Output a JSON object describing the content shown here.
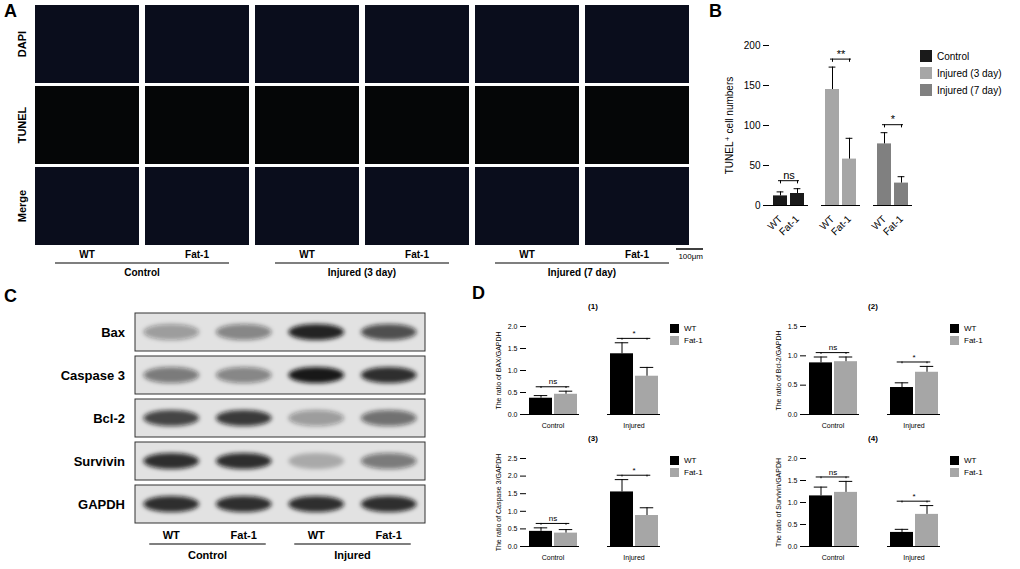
{
  "panel_a": {
    "label": "A",
    "rows": [
      "DAPI",
      "TUNEL",
      "Merge"
    ],
    "columns": [
      "WT",
      "Fat-1",
      "WT",
      "Fat-1",
      "WT",
      "Fat-1"
    ],
    "groups": [
      "Control",
      "Injured (3 day)",
      "Injured (7 day)"
    ],
    "scale_bar": "100μm"
  },
  "panel_b": {
    "label": "B"
  },
  "panel_c": {
    "label": "C",
    "proteins": [
      {
        "name": "Bax",
        "bands": [
          0.35,
          0.45,
          0.9,
          0.7
        ]
      },
      {
        "name": "Caspase 3",
        "bands": [
          0.5,
          0.45,
          0.95,
          0.85
        ]
      },
      {
        "name": "Bcl-2",
        "bands": [
          0.75,
          0.8,
          0.35,
          0.55
        ]
      },
      {
        "name": "Survivin",
        "bands": [
          0.85,
          0.85,
          0.25,
          0.5
        ]
      },
      {
        "name": "GAPDH",
        "bands": [
          0.85,
          0.85,
          0.85,
          0.85
        ]
      }
    ],
    "lanes": [
      "WT",
      "Fat-1",
      "WT",
      "Fat-1"
    ],
    "groups": [
      "Control",
      "Injured"
    ]
  },
  "panel_d": {
    "label": "D"
  },
  "chart_data": [
    {
      "type": "bar",
      "ylabel": "TUNEL⁺ cell numbers",
      "categories": [
        "WT",
        "Fat-1"
      ],
      "series": [
        {
          "name": "Control",
          "color": "#1a1a1a",
          "values": [
            12,
            15
          ],
          "errors": [
            5,
            6
          ]
        },
        {
          "name": "Injured (3 day)",
          "color": "#a6a6a6",
          "values": [
            145,
            58
          ],
          "errors": [
            28,
            26
          ]
        },
        {
          "name": "Injured (7 day)",
          "color": "#808080",
          "values": [
            77,
            28
          ],
          "errors": [
            14,
            8
          ]
        }
      ],
      "ylim": [
        0,
        200
      ],
      "yticks": [
        0,
        50,
        100,
        150,
        200
      ],
      "legend": "upper right",
      "annotations": [
        {
          "group": "Control",
          "label": "ns"
        },
        {
          "group": "Injured (3 day)",
          "label": "**"
        },
        {
          "group": "Injured (7 day)",
          "label": "*"
        }
      ]
    },
    {
      "type": "bar",
      "title": "(1)",
      "ylabel": "The ratio of BAX/GAPDH",
      "categories": [
        "Control",
        "Injured"
      ],
      "series": [
        {
          "name": "WT",
          "color": "#000000",
          "values": [
            0.37,
            1.38
          ],
          "errors": [
            0.06,
            0.25
          ]
        },
        {
          "name": "Fat-1",
          "color": "#a6a6a6",
          "values": [
            0.46,
            0.87
          ],
          "errors": [
            0.07,
            0.2
          ]
        }
      ],
      "ylim": [
        0,
        2
      ],
      "yticks": [
        {
          "value": 0,
          "label": "0.0"
        },
        {
          "value": 0.5,
          "label": "0.5"
        },
        {
          "value": 1,
          "label": "1.0"
        },
        {
          "value": 1.5,
          "label": "1.5"
        },
        {
          "value": 2,
          "label": "2.0"
        }
      ],
      "legend": "upper right",
      "annotations": [
        {
          "group": "Control",
          "label": "ns"
        },
        {
          "group": "Injured",
          "label": "*"
        }
      ]
    },
    {
      "type": "bar",
      "title": "(2)",
      "ylabel": "The ratio of Bcl-2/GAPDH",
      "categories": [
        "Control",
        "Injured"
      ],
      "series": [
        {
          "name": "WT",
          "color": "#000000",
          "values": [
            0.88,
            0.46
          ],
          "errors": [
            0.1,
            0.08
          ]
        },
        {
          "name": "Fat-1",
          "color": "#a6a6a6",
          "values": [
            0.9,
            0.72
          ],
          "errors": [
            0.08,
            0.1
          ]
        }
      ],
      "ylim": [
        0,
        1.5
      ],
      "yticks": [
        {
          "value": 0,
          "label": "0.0"
        },
        {
          "value": 0.5,
          "label": "0.5"
        },
        {
          "value": 1,
          "label": "1.0"
        },
        {
          "value": 1.5,
          "label": "1.5"
        }
      ],
      "legend": "upper right",
      "annotations": [
        {
          "group": "Control",
          "label": "ns"
        },
        {
          "group": "Injured",
          "label": "*"
        }
      ]
    },
    {
      "type": "bar",
      "title": "(3)",
      "ylabel": "The ratio of Caspase 3/GAPDH",
      "categories": [
        "Control",
        "Injured"
      ],
      "series": [
        {
          "name": "WT",
          "color": "#000000",
          "values": [
            0.43,
            1.55
          ],
          "errors": [
            0.1,
            0.35
          ]
        },
        {
          "name": "Fat-1",
          "color": "#a6a6a6",
          "values": [
            0.38,
            0.88
          ],
          "errors": [
            0.1,
            0.22
          ]
        }
      ],
      "ylim": [
        0,
        2.5
      ],
      "yticks": [
        {
          "value": 0,
          "label": "0.0"
        },
        {
          "value": 0.5,
          "label": "0.5"
        },
        {
          "value": 1,
          "label": "1.0"
        },
        {
          "value": 1.5,
          "label": "1.5"
        },
        {
          "value": 2,
          "label": "2.0"
        },
        {
          "value": 2.5,
          "label": "2.5"
        }
      ],
      "legend": "upper right",
      "annotations": [
        {
          "group": "Control",
          "label": "ns"
        },
        {
          "group": "Injured",
          "label": "*"
        }
      ]
    },
    {
      "type": "bar",
      "title": "(4)",
      "ylabel": "The ratio of Survivin/GAPDH",
      "categories": [
        "Control",
        "Injured"
      ],
      "series": [
        {
          "name": "WT",
          "color": "#000000",
          "values": [
            1.15,
            0.32
          ],
          "errors": [
            0.2,
            0.07
          ]
        },
        {
          "name": "Fat-1",
          "color": "#a6a6a6",
          "values": [
            1.23,
            0.73
          ],
          "errors": [
            0.25,
            0.2
          ]
        }
      ],
      "ylim": [
        0,
        2
      ],
      "yticks": [
        {
          "value": 0,
          "label": "0.0"
        },
        {
          "value": 0.5,
          "label": "0.5"
        },
        {
          "value": 1,
          "label": "1.0"
        },
        {
          "value": 1.5,
          "label": "1.5"
        },
        {
          "value": 2,
          "label": "2.0"
        }
      ],
      "legend": "upper right",
      "annotations": [
        {
          "group": "Control",
          "label": "ns"
        },
        {
          "group": "Injured",
          "label": "*"
        }
      ]
    }
  ]
}
